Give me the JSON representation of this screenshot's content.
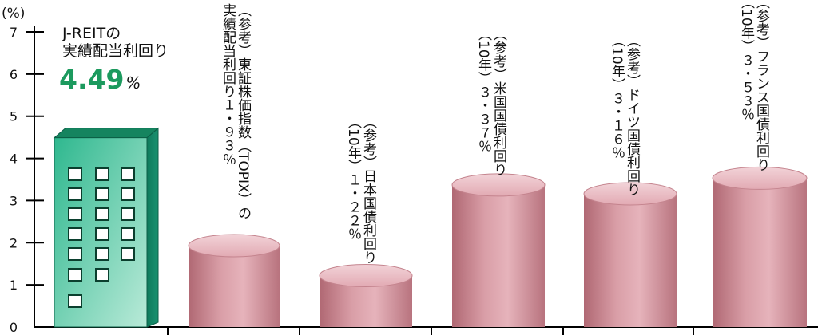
{
  "chart_data": {
    "type": "bar",
    "unit_label": "(%)",
    "ylim": [
      0,
      7
    ],
    "yticks": [
      "0",
      "1",
      "2",
      "3",
      "4",
      "5",
      "6",
      "7"
    ],
    "grid": false,
    "categories": [
      "J-REIT",
      "東証株価指数(TOPIX)",
      "日本国債",
      "米国国債",
      "ドイツ国債",
      "フランス国債"
    ],
    "values": [
      4.49,
      1.93,
      1.22,
      3.37,
      3.16,
      3.53
    ],
    "colors": {
      "reit": "#1f9a78",
      "cylinder": "#d4939d",
      "axis": "#000000",
      "highlight": "#1c9a5e"
    }
  },
  "jreit": {
    "title_line1": "J-REITの",
    "title_line2": "実績配当利回り",
    "value": "4.49",
    "percent": "%"
  },
  "annotations": [
    [
      "（参考）東証株価指数（TOPIX）の",
      "実績配当利回り１・９３％"
    ],
    [
      "（参考）日本国債利回り",
      "（10年）１・２２％"
    ],
    [
      "（参考）米国国債利回り",
      "（10年）３・３７％"
    ],
    [
      "（参考）ドイツ国債利回り",
      "（10年）３・１６％"
    ],
    [
      "（参考）フランス国債利回り",
      "（10年）３・５３％"
    ]
  ]
}
